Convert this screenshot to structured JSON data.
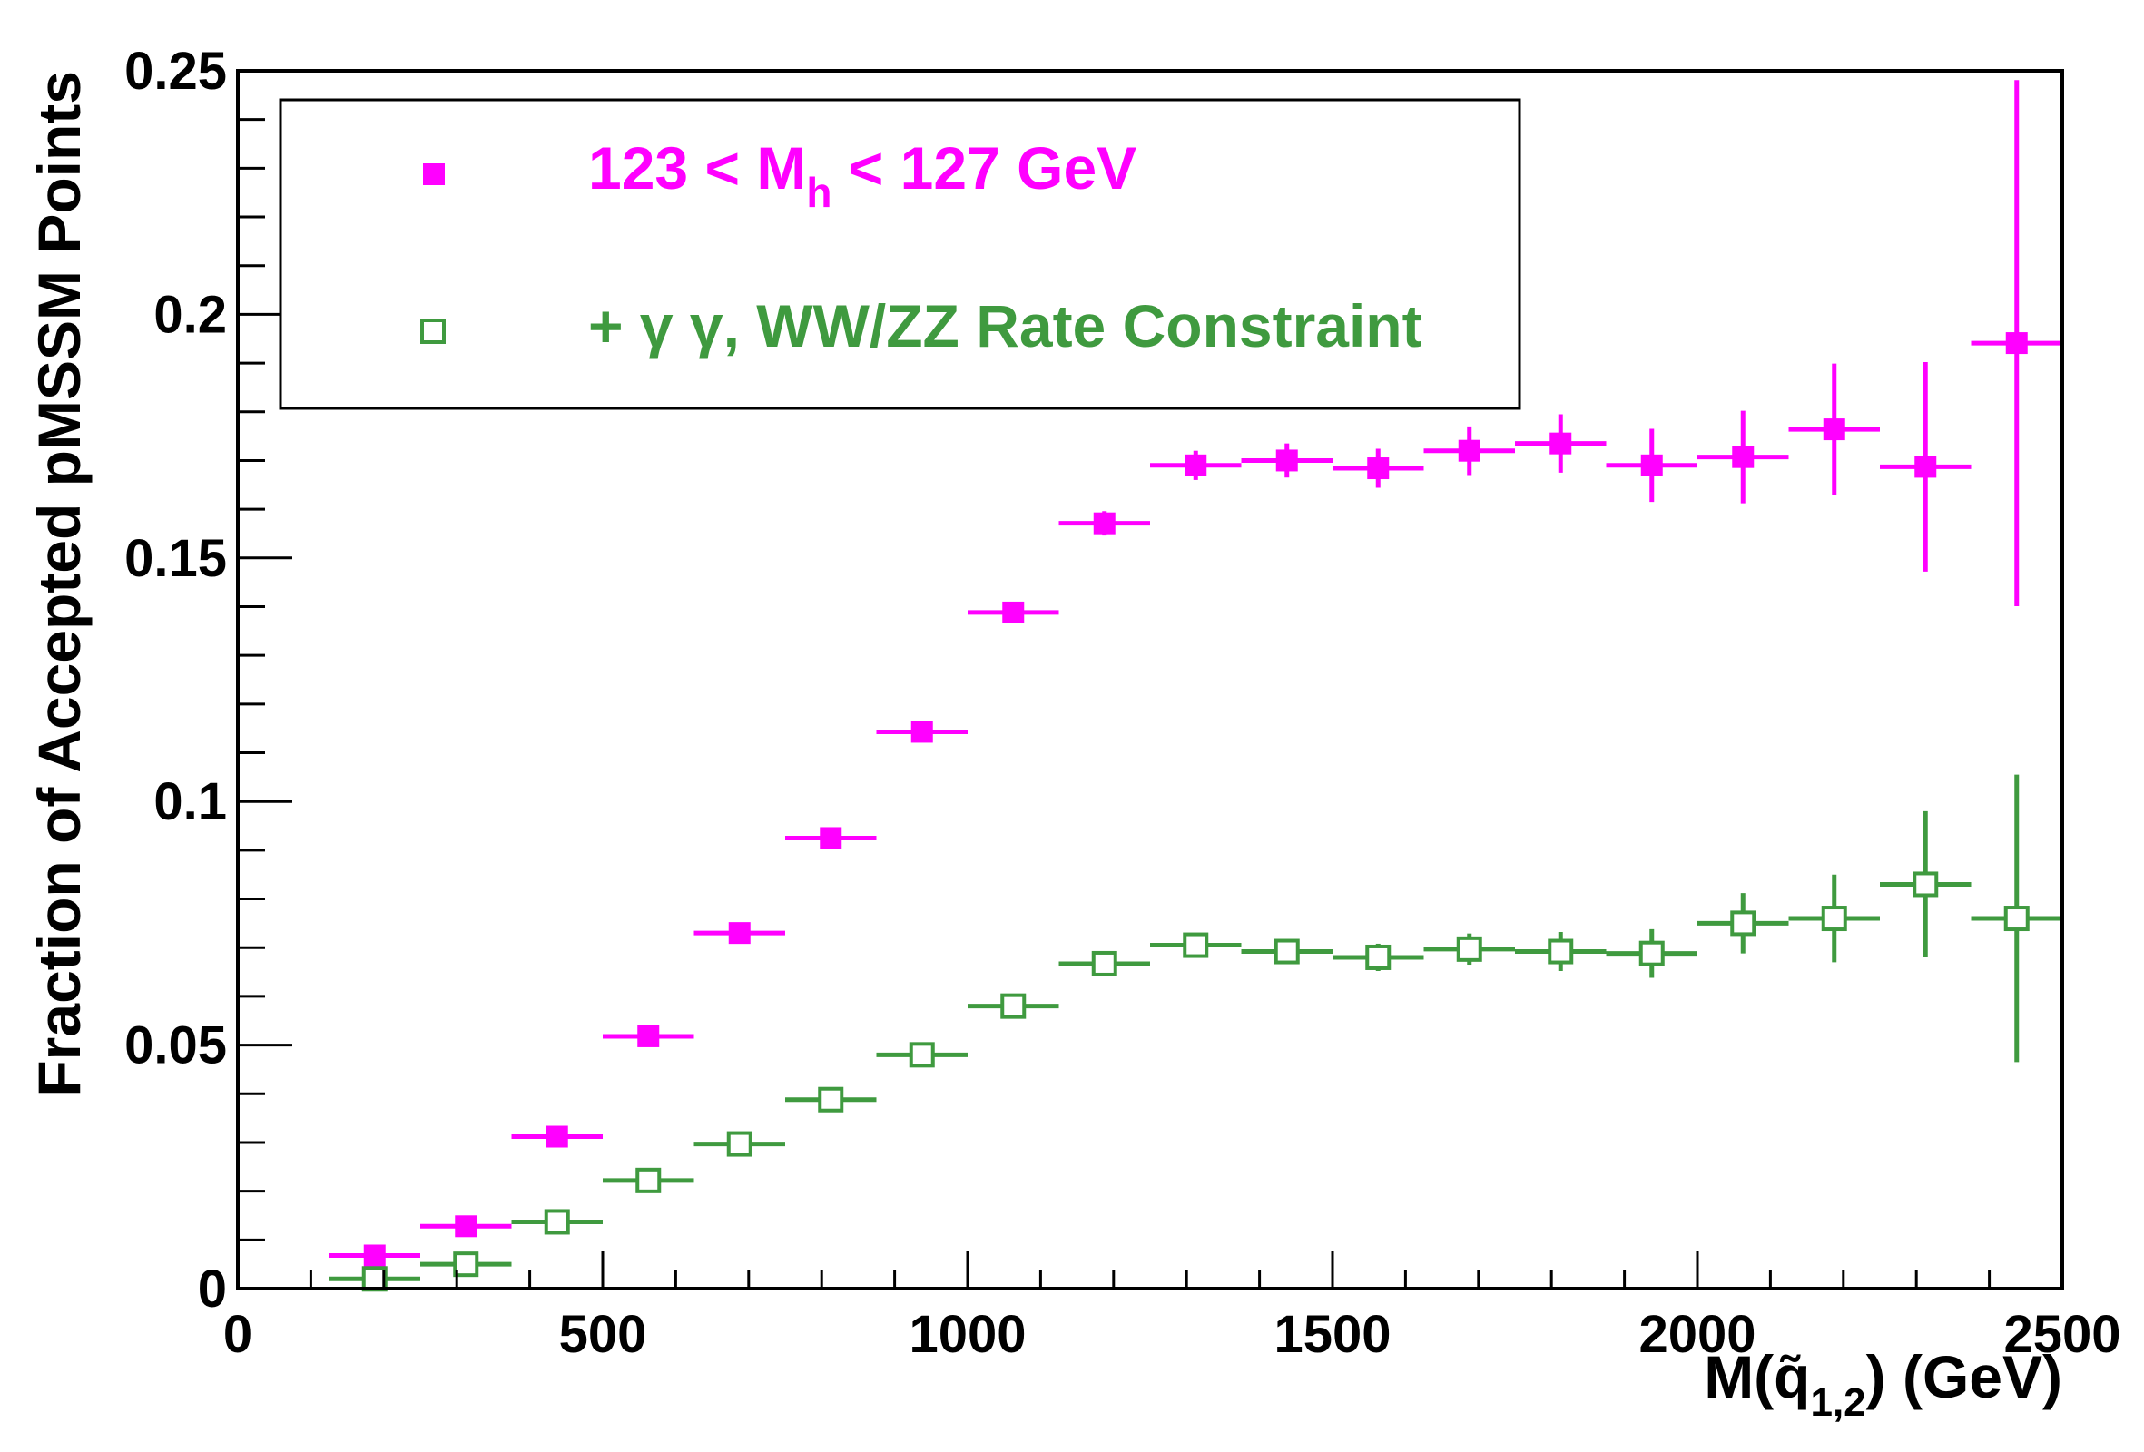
{
  "chart_data": {
    "type": "scatter",
    "title": "",
    "xlabel": {
      "main": "M(q̃",
      "sub": "1,2",
      "tail": ") (GeV)"
    },
    "ylabel": "Fraction of Accepted pMSSM Points",
    "xlim": [
      0,
      2500
    ],
    "ylim": [
      0,
      0.25
    ],
    "x_ticks": [
      {
        "value": 0,
        "label": "0"
      },
      {
        "value": 500,
        "label": "500"
      },
      {
        "value": 1000,
        "label": "1000"
      },
      {
        "value": 1500,
        "label": "1500"
      },
      {
        "value": 2000,
        "label": "2000"
      },
      {
        "value": 2500,
        "label": "2500"
      }
    ],
    "y_ticks": [
      {
        "value": 0,
        "label": "0"
      },
      {
        "value": 0.05,
        "label": "0.05"
      },
      {
        "value": 0.1,
        "label": "0.1"
      },
      {
        "value": 0.15,
        "label": "0.15"
      },
      {
        "value": 0.2,
        "label": "0.2"
      },
      {
        "value": 0.25,
        "label": "0.25"
      }
    ],
    "grid": false,
    "legend_position": "top-left",
    "series": [
      {
        "name": "mh-window",
        "legend": {
          "pre": "123 < M",
          "sub": "h",
          "post": " < 127 GeV"
        },
        "color": "#ff00ff",
        "marker": "filled-square",
        "x": [
          187.5,
          312.5,
          437.5,
          562.5,
          687.5,
          812.5,
          937.5,
          1062.5,
          1187.5,
          1312.5,
          1437.5,
          1562.5,
          1687.5,
          1812.5,
          1937.5,
          2062.5,
          2187.5,
          2312.5,
          2437.5
        ],
        "xerr": 62.5,
        "y": [
          0.0068,
          0.0128,
          0.0312,
          0.0518,
          0.073,
          0.0925,
          0.1143,
          0.1388,
          0.1571,
          0.169,
          0.17,
          0.1684,
          0.172,
          0.1735,
          0.169,
          0.1707,
          0.1764,
          0.1687,
          0.1941
        ],
        "yerr": [
          0.0005,
          0.0007,
          0.0012,
          0.0015,
          0.0017,
          0.0018,
          0.0019,
          0.0021,
          0.0025,
          0.003,
          0.0035,
          0.004,
          0.005,
          0.006,
          0.0075,
          0.0095,
          0.0135,
          0.0215,
          0.054
        ]
      },
      {
        "name": "rate-constraint",
        "legend": {
          "pre": "+ γ γ, WW/ZZ Rate Constraint",
          "sub": "",
          "post": ""
        },
        "color": "#3f9a3f",
        "marker": "open-square",
        "x": [
          187.5,
          312.5,
          437.5,
          562.5,
          687.5,
          812.5,
          937.5,
          1062.5,
          1187.5,
          1312.5,
          1437.5,
          1562.5,
          1687.5,
          1812.5,
          1937.5,
          2062.5,
          2187.5,
          2312.5,
          2437.5
        ],
        "xerr": 62.5,
        "y": [
          0.002,
          0.005,
          0.0137,
          0.0222,
          0.0297,
          0.0388,
          0.048,
          0.058,
          0.0667,
          0.0705,
          0.0692,
          0.068,
          0.0697,
          0.0692,
          0.0688,
          0.075,
          0.076,
          0.083,
          0.076
        ],
        "yerr": [
          0.0003,
          0.0005,
          0.0008,
          0.001,
          0.0011,
          0.0012,
          0.0013,
          0.0014,
          0.0016,
          0.002,
          0.0024,
          0.0028,
          0.0032,
          0.004,
          0.005,
          0.0062,
          0.009,
          0.015,
          0.0295
        ]
      }
    ]
  }
}
